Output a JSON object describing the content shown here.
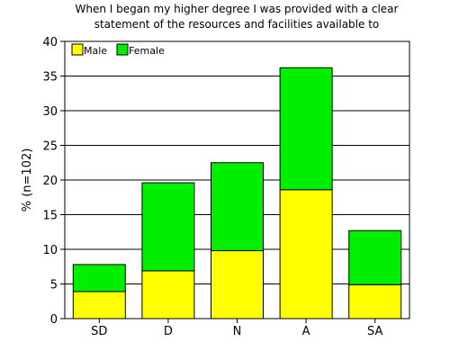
{
  "chart_data": {
    "type": "bar",
    "stacked": true,
    "title_line1": "When I began my higher degree I was provided with a clear",
    "title_line2": "statement of the resources and facilities available to",
    "ylabel": "% (n=102)",
    "categories": [
      "SD",
      "D",
      "N",
      "A",
      "SA"
    ],
    "series": [
      {
        "name": "Male",
        "color": "#ffff00",
        "values": [
          3.9,
          6.9,
          9.8,
          18.6,
          4.9
        ]
      },
      {
        "name": "Female",
        "color": "#00ee00",
        "values": [
          3.9,
          12.7,
          12.7,
          17.6,
          7.8
        ]
      }
    ],
    "ylim": [
      0,
      40
    ],
    "yticks": [
      0,
      5,
      10,
      15,
      20,
      25,
      30,
      35,
      40
    ],
    "grid": true,
    "legend_position": "top-left"
  }
}
